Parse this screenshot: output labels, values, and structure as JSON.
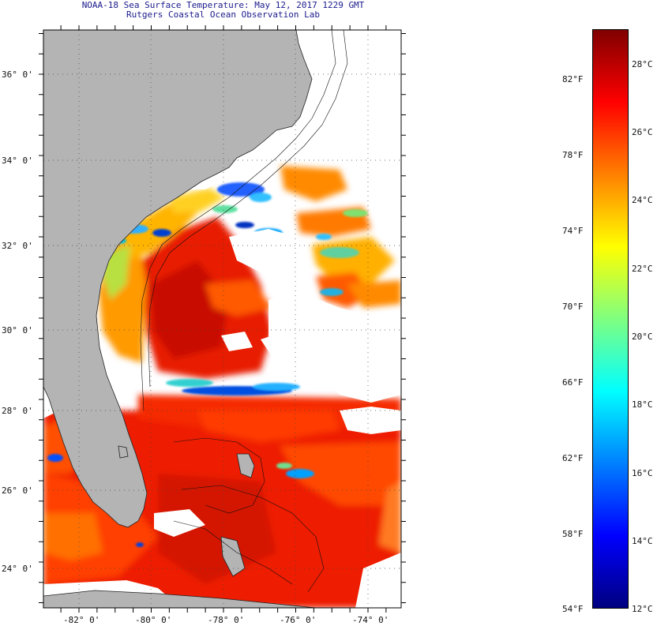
{
  "header": {
    "title": "NOAA-18 Sea Surface Temperature:  May 12, 2017 1229 GMT",
    "subtitle": "Rutgers Coastal Ocean Observation Lab"
  },
  "map": {
    "lat_labels": [
      "36° 0'",
      "34° 0'",
      "32° 0'",
      "30° 0'",
      "28° 0'",
      "26° 0'",
      "24° 0'"
    ],
    "lon_labels": [
      "-82° 0'",
      "-80° 0'",
      "-78° 0'",
      "-76° 0'",
      "-74° 0'"
    ],
    "land_color": "#b4b4b4",
    "cloud_color": "#ffffff"
  },
  "colorbar": {
    "fahrenheit_labels": [
      "82°F",
      "78°F",
      "74°F",
      "70°F",
      "66°F",
      "62°F",
      "58°F",
      "54°F"
    ],
    "celsius_labels": [
      "28°C",
      "26°C",
      "24°C",
      "22°C",
      "20°C",
      "18°C",
      "16°C",
      "14°C",
      "12°C"
    ],
    "min_c": 12,
    "max_c": 29,
    "gradient_colors": [
      "#000080",
      "#0000ff",
      "#0080ff",
      "#00ffff",
      "#80ff80",
      "#ffff00",
      "#ff8000",
      "#ff0000",
      "#800000"
    ]
  }
}
